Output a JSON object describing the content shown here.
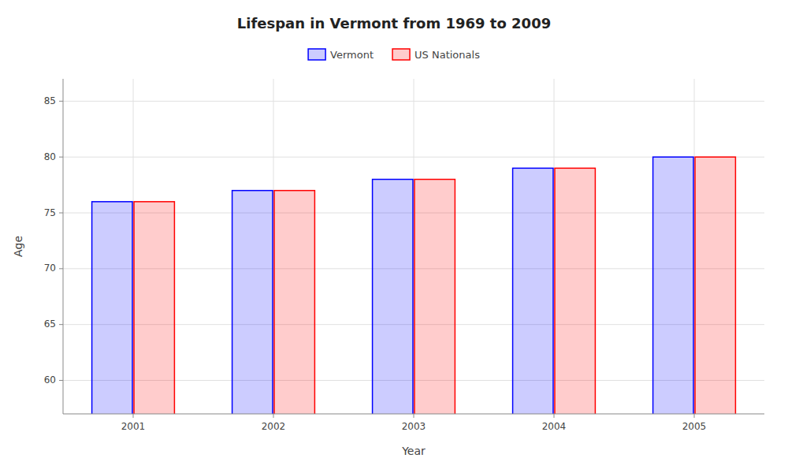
{
  "chart_data": {
    "type": "bar",
    "title": "Lifespan in Vermont from 1969 to 2009",
    "xlabel": "Year",
    "ylabel": "Age",
    "categories": [
      "2001",
      "2002",
      "2003",
      "2004",
      "2005"
    ],
    "series": [
      {
        "name": "Vermont",
        "color": "#0000ff",
        "values": [
          76.0,
          77.0,
          78.0,
          79.0,
          80.0
        ]
      },
      {
        "name": "US Nationals",
        "color": "#ff0000",
        "values": [
          76.0,
          77.0,
          78.0,
          79.0,
          80.0
        ]
      }
    ],
    "ylim": [
      57,
      87
    ],
    "yticks": [
      60,
      65,
      70,
      75,
      80,
      85
    ],
    "grid": true,
    "legend": "top"
  }
}
